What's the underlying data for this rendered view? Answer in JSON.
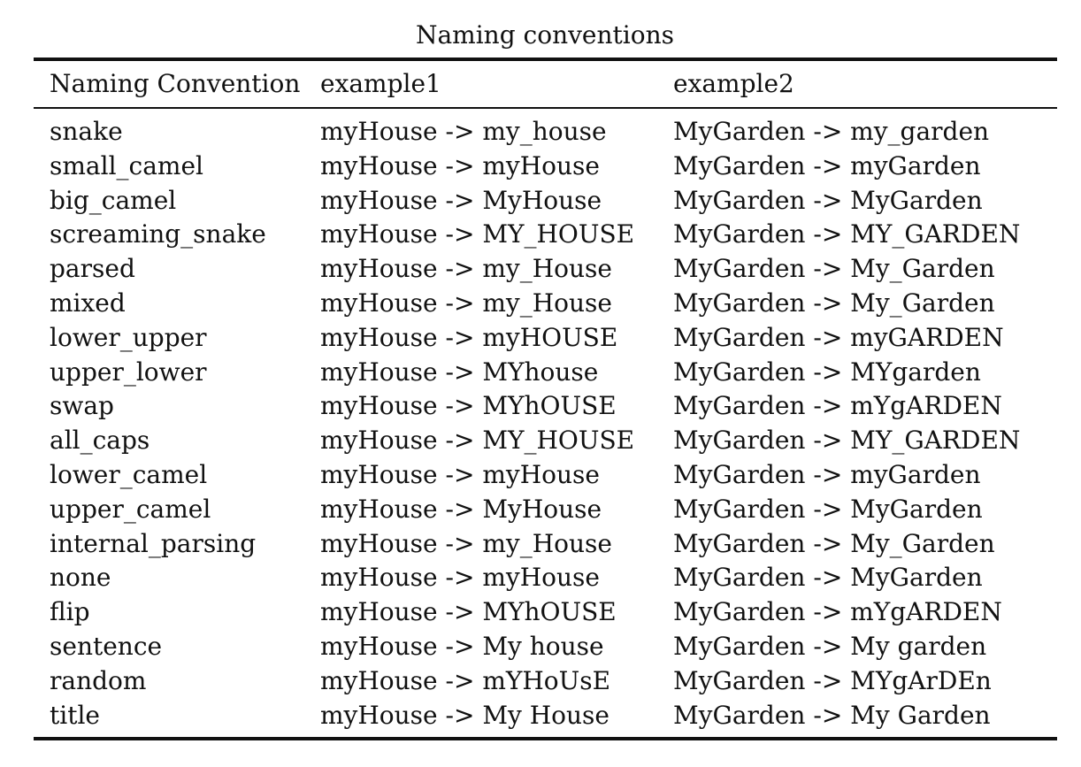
{
  "table": {
    "caption": "Naming conventions",
    "headers": [
      "Naming Convention",
      "example1",
      "example2"
    ],
    "rows": [
      [
        "snake",
        "myHouse -> my_house",
        "MyGarden -> my_garden"
      ],
      [
        "small_camel",
        "myHouse -> myHouse",
        "MyGarden -> myGarden"
      ],
      [
        "big_camel",
        "myHouse -> MyHouse",
        "MyGarden -> MyGarden"
      ],
      [
        "screaming_snake",
        "myHouse -> MY_HOUSE",
        "MyGarden -> MY_GARDEN"
      ],
      [
        "parsed",
        "myHouse -> my_House",
        "MyGarden -> My_Garden"
      ],
      [
        "mixed",
        "myHouse -> my_House",
        "MyGarden -> My_Garden"
      ],
      [
        "lower_upper",
        "myHouse -> myHOUSE",
        "MyGarden -> myGARDEN"
      ],
      [
        "upper_lower",
        "myHouse -> MYhouse",
        "MyGarden -> MYgarden"
      ],
      [
        "swap",
        "myHouse -> MYhOUSE",
        "MyGarden -> mYgARDEN"
      ],
      [
        "all_caps",
        "myHouse -> MY_HOUSE",
        "MyGarden -> MY_GARDEN"
      ],
      [
        "lower_camel",
        "myHouse -> myHouse",
        "MyGarden -> myGarden"
      ],
      [
        "upper_camel",
        "myHouse -> MyHouse",
        "MyGarden -> MyGarden"
      ],
      [
        "internal_parsing",
        "myHouse -> my_House",
        "MyGarden -> My_Garden"
      ],
      [
        "none",
        "myHouse -> myHouse",
        "MyGarden -> MyGarden"
      ],
      [
        "flip",
        "myHouse -> MYhOUSE",
        "MyGarden -> mYgARDEN"
      ],
      [
        "sentence",
        "myHouse -> My house",
        "MyGarden -> My garden"
      ],
      [
        "random",
        "myHouse -> mYHoUsE",
        "MyGarden -> MYgArDEn"
      ],
      [
        "title",
        "myHouse -> My House",
        "MyGarden -> My Garden"
      ]
    ]
  }
}
